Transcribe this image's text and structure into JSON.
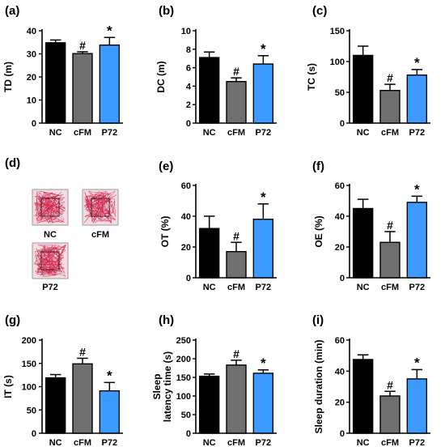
{
  "colors": {
    "NC": "#000000",
    "cFM": "#6f6f6f",
    "P72": "#3d9bff",
    "track_line": "#d21f47",
    "track_bg": "#f4dce3"
  },
  "categories": [
    "NC",
    "cFM",
    "P72"
  ],
  "chart_data": [
    {
      "type": "bar",
      "panel": "(a)",
      "ylabel": "TD (m)",
      "categories": [
        "NC",
        "cFM",
        "P72"
      ],
      "values": [
        34.8,
        30.1,
        33.8
      ],
      "errors": [
        1.2,
        0.8,
        3.3
      ],
      "markers": [
        "",
        "#",
        "*"
      ],
      "ylim": [
        0,
        40
      ],
      "yticks": [
        0,
        10,
        20,
        30,
        40
      ]
    },
    {
      "type": "bar",
      "panel": "(b)",
      "ylabel": "DC (m)",
      "categories": [
        "NC",
        "cFM",
        "P72"
      ],
      "values": [
        7.1,
        4.5,
        6.4
      ],
      "errors": [
        0.6,
        0.4,
        0.9
      ],
      "markers": [
        "",
        "#",
        "*"
      ],
      "ylim": [
        0,
        10
      ],
      "yticks": [
        0,
        2,
        4,
        6,
        8,
        10
      ]
    },
    {
      "type": "bar",
      "panel": "(c)",
      "ylabel": "TC (s)",
      "categories": [
        "NC",
        "cFM",
        "P72"
      ],
      "values": [
        110,
        53,
        78
      ],
      "errors": [
        15,
        10,
        9
      ],
      "markers": [
        "",
        "#",
        "*"
      ],
      "ylim": [
        0,
        150
      ],
      "yticks": [
        0,
        50,
        100,
        150
      ]
    },
    {
      "type": "bar",
      "panel": "(e)",
      "ylabel": "OT (%)",
      "categories": [
        "NC",
        "cFM",
        "P72"
      ],
      "values": [
        32,
        17,
        38
      ],
      "errors": [
        8,
        6,
        10
      ],
      "markers": [
        "",
        "#",
        "*"
      ],
      "ylim": [
        0,
        60
      ],
      "yticks": [
        0,
        20,
        40,
        60
      ]
    },
    {
      "type": "bar",
      "panel": "(f)",
      "ylabel": "OE (%)",
      "categories": [
        "NC",
        "cFM",
        "P72"
      ],
      "values": [
        45,
        23,
        49
      ],
      "errors": [
        6,
        7,
        4
      ],
      "markers": [
        "",
        "#",
        "*"
      ],
      "ylim": [
        0,
        60
      ],
      "yticks": [
        0,
        20,
        40,
        60
      ]
    },
    {
      "type": "bar",
      "panel": "(g)",
      "ylabel": "IT (s)",
      "categories": [
        "NC",
        "cFM",
        "P72"
      ],
      "values": [
        119,
        149,
        91
      ],
      "errors": [
        7,
        12,
        18
      ],
      "markers": [
        "",
        "#",
        "*"
      ],
      "ylim": [
        0,
        200
      ],
      "yticks": [
        0,
        50,
        100,
        150,
        200
      ]
    },
    {
      "type": "bar",
      "panel": "(h)",
      "ylabel": [
        "Sleep",
        "latency time (s)"
      ],
      "categories": [
        "NC",
        "cFM",
        "P72"
      ],
      "values": [
        153,
        183,
        161
      ],
      "errors": [
        6,
        13,
        9
      ],
      "markers": [
        "",
        "#",
        "*"
      ],
      "ylim": [
        0,
        250
      ],
      "yticks": [
        0,
        50,
        100,
        150,
        200,
        250
      ]
    },
    {
      "type": "bar",
      "panel": "(i)",
      "ylabel": "Sleep duration (min)",
      "categories": [
        "NC",
        "cFM",
        "P72"
      ],
      "values": [
        47.5,
        24,
        35
      ],
      "errors": [
        3,
        3,
        6
      ],
      "markers": [
        "",
        "#",
        "*"
      ],
      "ylim": [
        0,
        60
      ],
      "yticks": [
        0,
        20,
        40,
        60
      ]
    }
  ],
  "track_panel": {
    "panel": "(d)",
    "labels": [
      "NC",
      "cFM",
      "P72"
    ]
  }
}
